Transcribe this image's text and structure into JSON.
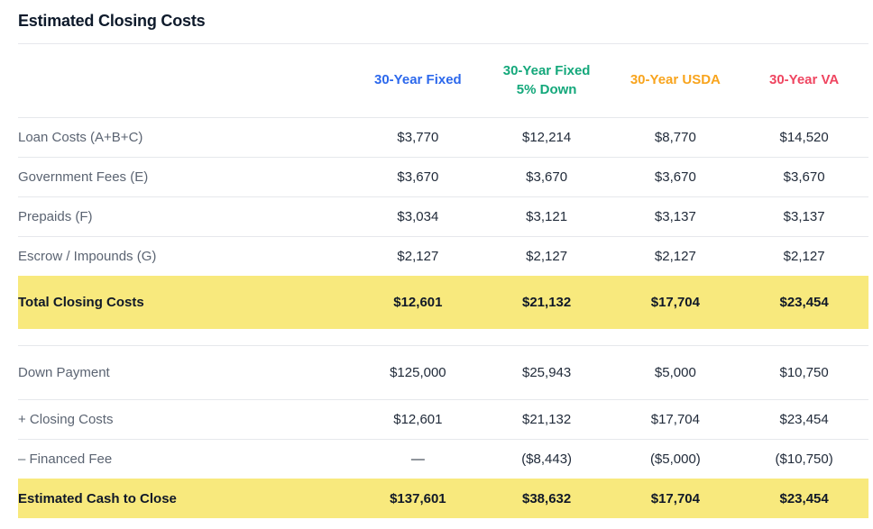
{
  "title": "Estimated Closing Costs",
  "colors": {
    "highlight_bg": "#f8e97d",
    "border": "#e6e8ec",
    "label_text": "#5b6472",
    "value_text": "#212b3a",
    "title_text": "#0e1a2b",
    "col_fixed": "#2c68ec",
    "col_fixed_5_down": "#14a87b",
    "col_usda": "#f8a41d",
    "col_va": "#ef4560"
  },
  "table": {
    "columns": [
      {
        "id": "30-year-fixed",
        "label": "30-Year Fixed",
        "lines": [
          "30-Year Fixed"
        ],
        "color": "#2c68ec"
      },
      {
        "id": "30-year-fixed-5-down",
        "label": "30-Year Fixed 5% Down",
        "lines": [
          "30-Year Fixed",
          "5% Down"
        ],
        "color": "#14a87b"
      },
      {
        "id": "30-year-usda",
        "label": "30-Year USDA",
        "lines": [
          "30-Year USDA"
        ],
        "color": "#f8a41d"
      },
      {
        "id": "30-year-va",
        "label": "30-Year VA",
        "lines": [
          "30-Year VA"
        ],
        "color": "#ef4560"
      }
    ],
    "sections": [
      {
        "name": "closing-costs",
        "rows": [
          {
            "label": "Loan Costs (A+B+C)",
            "values": [
              "$3,770",
              "$12,214",
              "$8,770",
              "$14,520"
            ],
            "highlight": false
          },
          {
            "label": "Government Fees (E)",
            "values": [
              "$3,670",
              "$3,670",
              "$3,670",
              "$3,670"
            ],
            "highlight": false
          },
          {
            "label": "Prepaids (F)",
            "values": [
              "$3,034",
              "$3,121",
              "$3,137",
              "$3,137"
            ],
            "highlight": false
          },
          {
            "label": "Escrow / Impounds (G)",
            "values": [
              "$2,127",
              "$2,127",
              "$2,127",
              "$2,127"
            ],
            "highlight": false
          },
          {
            "label": "Total Closing Costs",
            "values": [
              "$12,601",
              "$21,132",
              "$17,704",
              "$23,454"
            ],
            "highlight": true
          }
        ]
      },
      {
        "name": "cash-to-close",
        "rows": [
          {
            "label": "Down Payment",
            "values": [
              "$125,000",
              "$25,943",
              "$5,000",
              "$10,750"
            ],
            "highlight": false
          },
          {
            "label": "+ Closing Costs",
            "values": [
              "$12,601",
              "$21,132",
              "$17,704",
              "$23,454"
            ],
            "highlight": false
          },
          {
            "label": "– Financed Fee",
            "values": [
              "—",
              "($8,443)",
              "($5,000)",
              "($10,750)"
            ],
            "highlight": false
          },
          {
            "label": "Estimated Cash to Close",
            "values": [
              "$137,601",
              "$38,632",
              "$17,704",
              "$23,454"
            ],
            "highlight": true
          }
        ]
      }
    ]
  }
}
